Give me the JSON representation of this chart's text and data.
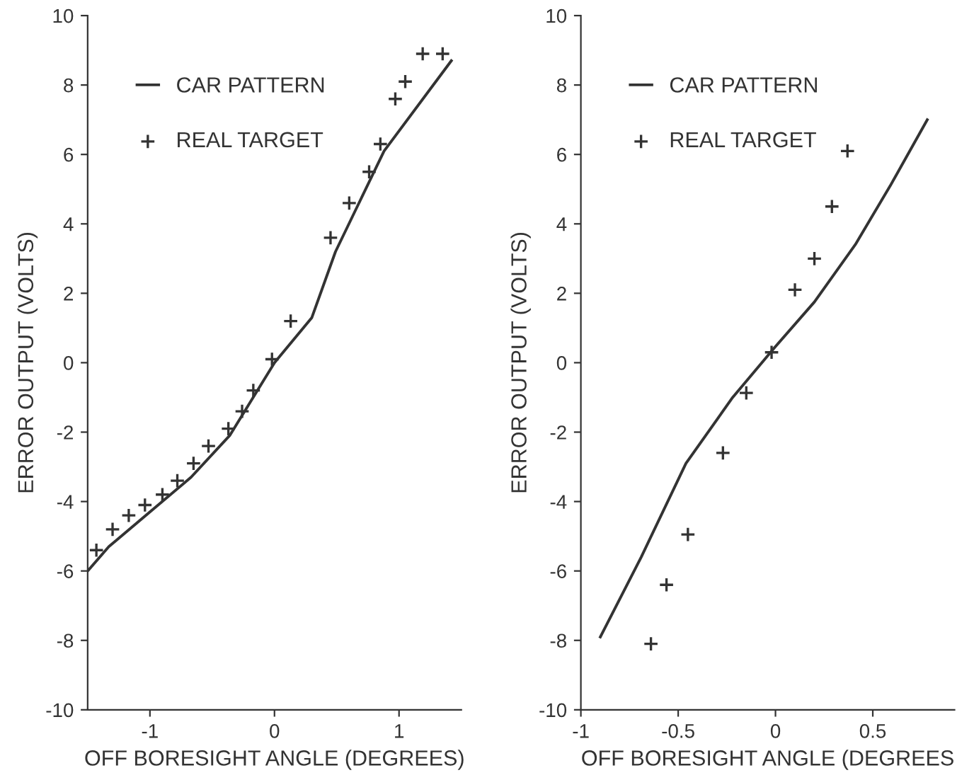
{
  "chart_data": [
    {
      "type": "line",
      "xlabel": "OFF BORESIGHT ANGLE (DEGREES)",
      "ylabel": "ERROR OUTPUT (VOLTS)",
      "xlim": [
        -1.5,
        1.5
      ],
      "xticks": [
        -1,
        0,
        1
      ],
      "ylim": [
        -10,
        10
      ],
      "yticks": [
        -10,
        -8,
        -6,
        -4,
        -2,
        0,
        2,
        4,
        6,
        8,
        10
      ],
      "grid": false,
      "legend": "top left",
      "series": [
        {
          "name": "CAR PATTERN",
          "color": "#333333",
          "marker": "none",
          "line_style": "solid",
          "x": [
            -1.5,
            -1.33,
            -1.0,
            -0.67,
            -0.36,
            0,
            0.3,
            0.49,
            0.88,
            1.42
          ],
          "values": [
            -6.0,
            -5.3,
            -4.3,
            -3.3,
            -2.1,
            0,
            1.3,
            3.2,
            6.1,
            8.7
          ]
        },
        {
          "name": "REAL TARGET",
          "type": "scatter",
          "color": "#333333",
          "marker": "cross",
          "x": [
            -1.43,
            -1.3,
            -1.17,
            -1.04,
            -0.9,
            -0.78,
            -0.65,
            -0.53,
            -0.37,
            -0.26,
            -0.17,
            -0.02,
            0.13,
            0.45,
            0.6,
            0.76,
            0.85,
            0.97,
            1.05,
            1.19,
            1.35
          ],
          "values": [
            -5.4,
            -4.8,
            -4.4,
            -4.1,
            -3.8,
            -3.4,
            -2.9,
            -2.4,
            -1.9,
            -1.4,
            -0.8,
            0.1,
            1.2,
            3.6,
            4.6,
            5.5,
            6.3,
            7.6,
            8.1,
            8.9,
            8.9
          ]
        }
      ]
    },
    {
      "type": "line",
      "xlabel": "OFF BORESIGHT ANGLE (DEGREES",
      "ylabel": "ERROR OUTPUT (VOLTS)",
      "xlim": [
        -1,
        0.92
      ],
      "xticks": [
        -1,
        -0.5,
        0,
        0.5
      ],
      "ylim": [
        -10,
        10
      ],
      "yticks": [
        -10,
        -8,
        -6,
        -4,
        -2,
        0,
        2,
        4,
        6,
        8,
        10
      ],
      "grid": false,
      "legend": "top left",
      "series": [
        {
          "name": "CAR PATTERN",
          "color": "#333333",
          "marker": "none",
          "line_style": "solid",
          "x": [
            -0.9,
            -0.69,
            -0.46,
            -0.22,
            -0.01,
            0.2,
            0.41,
            0.59,
            0.78
          ],
          "values": [
            -7.9,
            -5.6,
            -2.9,
            -1.0,
            0.4,
            1.75,
            3.4,
            5.1,
            7.0
          ]
        },
        {
          "name": "REAL TARGET",
          "type": "scatter",
          "color": "#333333",
          "marker": "cross",
          "x": [
            -0.64,
            -0.56,
            -0.45,
            -0.27,
            -0.15,
            -0.02,
            0.1,
            0.2,
            0.29,
            0.37
          ],
          "values": [
            -8.1,
            -6.4,
            -4.95,
            -2.6,
            -0.87,
            0.3,
            2.1,
            3.0,
            4.5,
            6.1
          ]
        }
      ]
    }
  ]
}
